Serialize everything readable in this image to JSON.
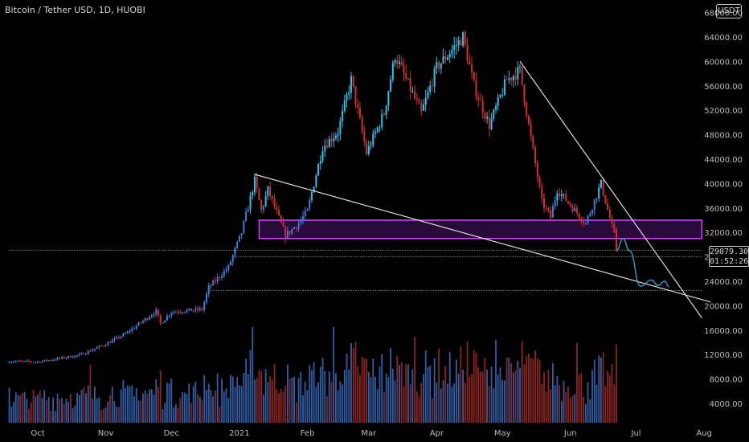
{
  "title": "Bitcoin / Tether USD, 1D, HUOBI",
  "quote_unit": "USDT",
  "last_price_label": "29079.30",
  "countdown_label": "01:52:26",
  "colors": {
    "up": "#3d7fe0",
    "up_bright": "#2ec4f0",
    "down": "#d32f2f",
    "zone_stroke": "#d24cff",
    "zone_fill": "#2a0a3a",
    "trendline": "#dcdcdc",
    "projection": "#29a3c6",
    "axis_text": "#bdbdbd"
  },
  "chart_data": {
    "type": "candlestick",
    "symbol": "Bitcoin / Tether USD",
    "interval": "1D",
    "exchange": "HUOBI",
    "y_axis": {
      "side": "right",
      "ticks": [
        4000,
        8000,
        12000,
        16000,
        20000,
        24000,
        28000,
        32000,
        36000,
        40000,
        44000,
        48000,
        52000,
        56000,
        60000,
        64000,
        68000
      ],
      "tick_labels": [
        "4000.00",
        "8000.00",
        "12000.00",
        "16000.00",
        "20000.00",
        "24000.00",
        "28000.00",
        "32000.00",
        "36000.00",
        "40000.00",
        "44000.00",
        "48000.00",
        "52000.00",
        "56000.00",
        "60000.00",
        "64000.00",
        "68000.00"
      ]
    },
    "x_axis": {
      "ticks": [
        {
          "label": "Oct",
          "date": "2020-10-01"
        },
        {
          "label": "Nov",
          "date": "2020-11-01"
        },
        {
          "label": "Dec",
          "date": "2020-12-01"
        },
        {
          "label": "2021",
          "date": "2021-01-01"
        },
        {
          "label": "Feb",
          "date": "2021-02-01"
        },
        {
          "label": "Mar",
          "date": "2021-03-01"
        },
        {
          "label": "Apr",
          "date": "2021-04-01"
        },
        {
          "label": "May",
          "date": "2021-05-01"
        },
        {
          "label": "Jun",
          "date": "2021-06-01"
        },
        {
          "label": "Jul",
          "date": "2021-07-01"
        },
        {
          "label": "Aug",
          "date": "2021-08-01"
        }
      ]
    },
    "price_path": [
      {
        "date": "2020-09-18",
        "close": 10900
      },
      {
        "date": "2020-10-01",
        "close": 10800
      },
      {
        "date": "2020-10-20",
        "close": 11900
      },
      {
        "date": "2020-11-01",
        "close": 13700
      },
      {
        "date": "2020-11-10",
        "close": 15400
      },
      {
        "date": "2020-11-24",
        "close": 19100
      },
      {
        "date": "2020-11-26",
        "close": 17100
      },
      {
        "date": "2020-12-01",
        "close": 19000
      },
      {
        "date": "2020-12-15",
        "close": 19400
      },
      {
        "date": "2020-12-18",
        "close": 23000
      },
      {
        "date": "2020-12-27",
        "close": 26300
      },
      {
        "date": "2021-01-02",
        "close": 32000
      },
      {
        "date": "2021-01-08",
        "close": 40500
      },
      {
        "date": "2021-01-11",
        "close": 35500
      },
      {
        "date": "2021-01-14",
        "close": 39000
      },
      {
        "date": "2021-01-22",
        "close": 31500
      },
      {
        "date": "2021-01-28",
        "close": 33500
      },
      {
        "date": "2021-02-01",
        "close": 35500
      },
      {
        "date": "2021-02-08",
        "close": 46000
      },
      {
        "date": "2021-02-15",
        "close": 48500
      },
      {
        "date": "2021-02-21",
        "close": 57000
      },
      {
        "date": "2021-02-28",
        "close": 45000
      },
      {
        "date": "2021-03-08",
        "close": 51500
      },
      {
        "date": "2021-03-13",
        "close": 61000
      },
      {
        "date": "2021-03-25",
        "close": 51500
      },
      {
        "date": "2021-04-01",
        "close": 59000
      },
      {
        "date": "2021-04-13",
        "close": 64000
      },
      {
        "date": "2021-04-18",
        "close": 56000
      },
      {
        "date": "2021-04-25",
        "close": 49500
      },
      {
        "date": "2021-05-03",
        "close": 57000
      },
      {
        "date": "2021-05-09",
        "close": 58500
      },
      {
        "date": "2021-05-13",
        "close": 49500
      },
      {
        "date": "2021-05-19",
        "close": 37000
      },
      {
        "date": "2021-05-23",
        "close": 34500
      },
      {
        "date": "2021-05-26",
        "close": 39000
      },
      {
        "date": "2021-06-01",
        "close": 36500
      },
      {
        "date": "2021-06-08",
        "close": 33500
      },
      {
        "date": "2021-06-15",
        "close": 40000
      },
      {
        "date": "2021-06-21",
        "close": 31500
      },
      {
        "date": "2021-06-22",
        "close": 29079.3
      }
    ],
    "volume_axis_max": 22000,
    "annotations": {
      "support_zone": {
        "from": "2021-01-10",
        "to": "2021-07-31",
        "price_low": 31000,
        "price_high": 34000
      },
      "trendlines": [
        {
          "from": {
            "date": "2021-01-08",
            "price": 41500
          },
          "to": {
            "date": "2021-08-04",
            "price": 20600
          }
        },
        {
          "from": {
            "date": "2021-05-09",
            "price": 60000
          },
          "to": {
            "date": "2021-07-31",
            "price": 18000
          }
        }
      ],
      "dotted_levels": [
        {
          "price": 29079.3,
          "from": "2020-09-18",
          "to": "2021-07-31"
        },
        {
          "price": 28000,
          "from": "2020-12-29",
          "to": "2021-07-31"
        },
        {
          "price": 22500,
          "from": "2020-12-18",
          "to": "2021-07-31"
        }
      ],
      "projection_path": [
        {
          "date": "2021-06-22",
          "price": 29000
        },
        {
          "date": "2021-06-25",
          "price": 31000
        },
        {
          "date": "2021-06-28",
          "price": 29000
        },
        {
          "date": "2021-07-03",
          "price": 23200
        },
        {
          "date": "2021-07-08",
          "price": 24200
        },
        {
          "date": "2021-07-11",
          "price": 23300
        },
        {
          "date": "2021-07-14",
          "price": 24000
        },
        {
          "date": "2021-07-16",
          "price": 23100
        }
      ]
    }
  }
}
